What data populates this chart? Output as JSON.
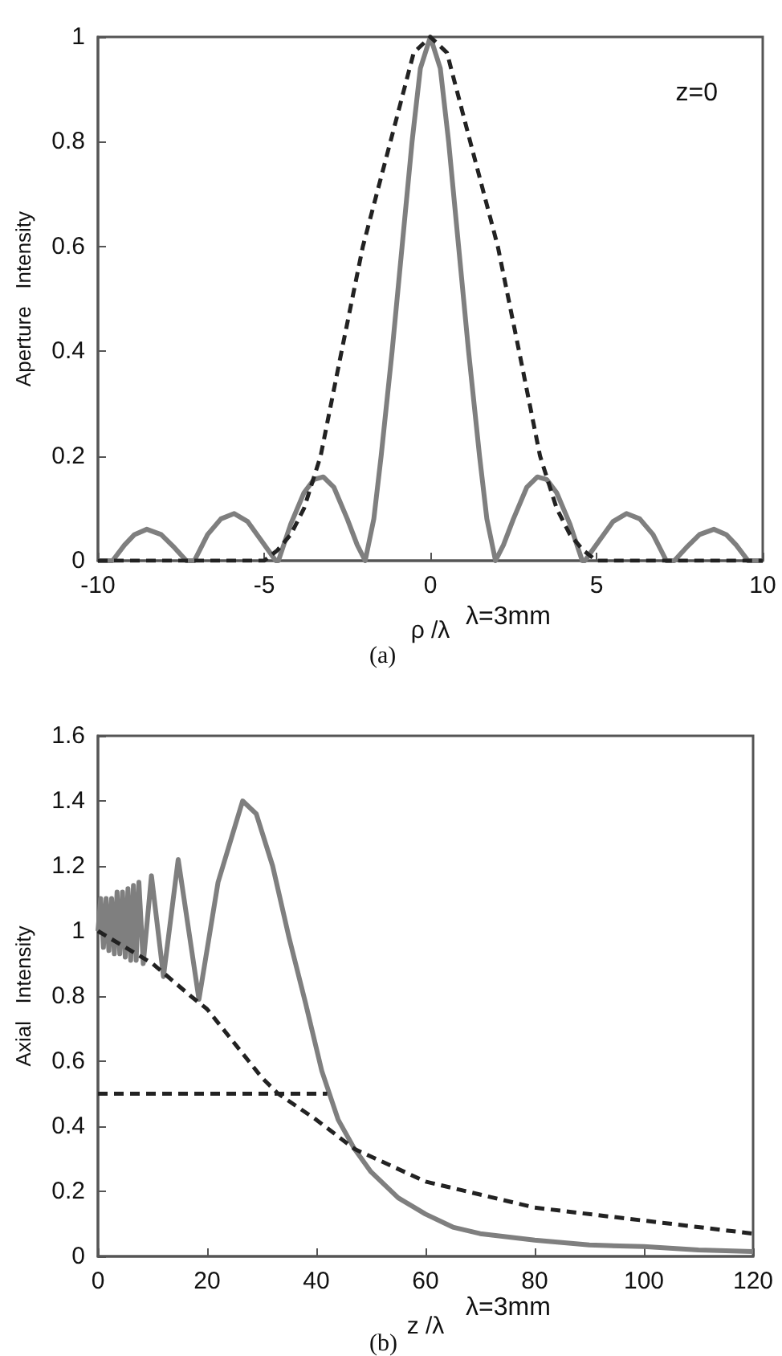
{
  "chart_data": [
    {
      "type": "line",
      "xlabel": "ρ /λ",
      "ylabel": "Aperture   Intensity",
      "annotations": [
        "z=0",
        "λ=3mm",
        "(a)"
      ],
      "xlim": [
        -10,
        10
      ],
      "xticks": [
        -10,
        -5,
        0,
        5,
        10
      ],
      "ylim": [
        0,
        1
      ],
      "yticks": [
        0,
        0.2,
        0.4,
        0.6,
        0.8,
        1
      ],
      "grid": false,
      "marker": "none",
      "series": [
        {
          "color": "#7f7f7f",
          "line_style": "solid",
          "x": [
            -10,
            -9.56,
            -9.2,
            -8.9,
            -8.53,
            -8.1,
            -7.7,
            -7.34,
            -7.1,
            -6.7,
            -6.3,
            -5.9,
            -5.5,
            -5.1,
            -4.65,
            -4.57,
            -4.2,
            -3.8,
            -3.5,
            -3.22,
            -2.9,
            -2.5,
            -2.2,
            -1.96,
            -1.7,
            -1.48,
            -1.15,
            -0.85,
            -0.55,
            -0.3,
            0,
            0.3,
            0.55,
            0.85,
            1.15,
            1.48,
            1.7,
            1.96,
            2.2,
            2.5,
            2.9,
            3.22,
            3.5,
            3.8,
            4.2,
            4.57,
            4.65,
            5.1,
            5.5,
            5.9,
            6.3,
            6.7,
            7.1,
            7.34,
            7.7,
            8.1,
            8.53,
            8.9,
            9.2,
            9.56,
            10
          ],
          "values": [
            0,
            0,
            0.03,
            0.05,
            0.06,
            0.05,
            0.025,
            0,
            0,
            0.05,
            0.08,
            0.09,
            0.075,
            0.04,
            0,
            0,
            0.07,
            0.13,
            0.155,
            0.16,
            0.14,
            0.08,
            0.03,
            0,
            0.08,
            0.2,
            0.4,
            0.6,
            0.8,
            0.94,
            1,
            0.94,
            0.8,
            0.6,
            0.4,
            0.2,
            0.08,
            0,
            0.03,
            0.08,
            0.14,
            0.16,
            0.155,
            0.13,
            0.07,
            0,
            0,
            0.04,
            0.075,
            0.09,
            0.08,
            0.05,
            0,
            0,
            0.025,
            0.05,
            0.06,
            0.05,
            0.03,
            0,
            0
          ]
        },
        {
          "color": "#222222",
          "line_style": "dashed",
          "x": [
            -10,
            -5,
            -4.6,
            -4.2,
            -3.8,
            -3.3,
            -2.67,
            -2.03,
            -1.2,
            -0.5,
            0,
            0.5,
            1.2,
            2.03,
            2.67,
            3.3,
            3.8,
            4.2,
            4.6,
            5,
            10
          ],
          "values": [
            0,
            0,
            0.02,
            0.05,
            0.1,
            0.2,
            0.4,
            0.6,
            0.8,
            0.97,
            1,
            0.97,
            0.8,
            0.6,
            0.4,
            0.2,
            0.1,
            0.05,
            0.02,
            0,
            0
          ]
        }
      ]
    },
    {
      "type": "line",
      "xlabel": "z /λ",
      "ylabel": "Axial   Intensity",
      "annotations": [
        "λ=3mm",
        "(b)"
      ],
      "xlim": [
        0,
        120
      ],
      "xticks": [
        0,
        20,
        40,
        60,
        80,
        100,
        120
      ],
      "ylim": [
        0,
        1.6
      ],
      "yticks": [
        0,
        0.2,
        0.4,
        0.6,
        0.8,
        1,
        1.2,
        1.4,
        1.6
      ],
      "grid": false,
      "marker": "none",
      "series": [
        {
          "color": "#7f7f7f",
          "line_style": "solid",
          "x": [
            0,
            0.5,
            1,
            1.5,
            2,
            2.5,
            3,
            3.5,
            4,
            4.5,
            5,
            5.5,
            6,
            6.5,
            7,
            7.5,
            8.3,
            9.8,
            12,
            14.7,
            18.5,
            22,
            26.5,
            29,
            32,
            35,
            38,
            41,
            44,
            47,
            50,
            55,
            60,
            65,
            70,
            80,
            90,
            100,
            110,
            120
          ],
          "values": [
            1,
            1.1,
            0.95,
            1.1,
            0.94,
            1.1,
            0.93,
            1.12,
            0.93,
            1.12,
            0.92,
            1.13,
            0.91,
            1.14,
            0.91,
            1.15,
            0.9,
            1.17,
            0.86,
            1.22,
            0.79,
            1.15,
            1.4,
            1.36,
            1.2,
            0.98,
            0.78,
            0.57,
            0.42,
            0.33,
            0.26,
            0.18,
            0.13,
            0.09,
            0.07,
            0.05,
            0.035,
            0.03,
            0.02,
            0.015
          ]
        },
        {
          "color": "#222222",
          "line_style": "dashed",
          "x": [
            0,
            10,
            17,
            20,
            30,
            33,
            40,
            47,
            60,
            80,
            100,
            120
          ],
          "values": [
            1,
            0.9,
            0.8,
            0.76,
            0.55,
            0.5,
            0.42,
            0.33,
            0.23,
            0.15,
            0.11,
            0.07
          ]
        },
        {
          "color": "#222222",
          "line_style": "dashed",
          "x": [
            0,
            42
          ],
          "values": [
            0.5,
            0.5
          ]
        }
      ]
    }
  ]
}
